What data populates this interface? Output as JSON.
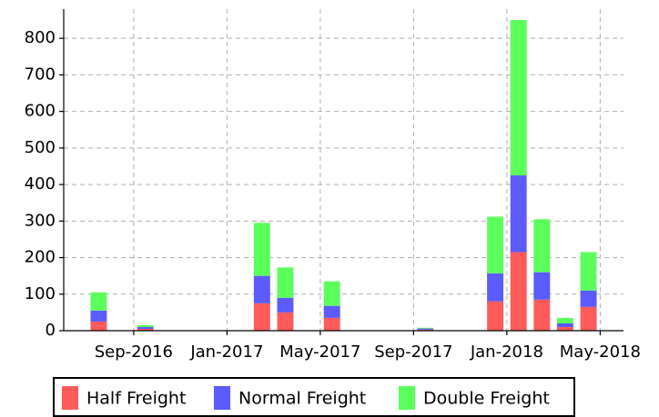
{
  "chart_data": {
    "type": "stacked_bar",
    "x": [
      "2016-07",
      "2016-09",
      "2017-02",
      "2017-03",
      "2017-05",
      "2017-09",
      "2017-12",
      "2018-01",
      "2018-02",
      "2018-03",
      "2018-04"
    ],
    "series": [
      {
        "name": "Half Freight",
        "color": "#ff5b5b",
        "values": [
          25,
          5,
          75,
          50,
          35,
          3,
          80,
          215,
          85,
          10,
          65
        ]
      },
      {
        "name": "Normal Freight",
        "color": "#5b5bff",
        "values": [
          30,
          5,
          75,
          40,
          33,
          3,
          77,
          210,
          75,
          10,
          45
        ]
      },
      {
        "name": "Double Freight",
        "color": "#5bff5b",
        "values": [
          50,
          5,
          145,
          83,
          67,
          2,
          155,
          425,
          145,
          15,
          105
        ]
      }
    ],
    "xlim": [
      "2016-06",
      "2018-06"
    ],
    "xticks": [
      {
        "value": "2016-09",
        "label": "Sep-2016"
      },
      {
        "value": "2017-01",
        "label": "Jan-2017"
      },
      {
        "value": "2017-05",
        "label": "May-2017"
      },
      {
        "value": "2017-09",
        "label": "Sep-2017"
      },
      {
        "value": "2018-01",
        "label": "Jan-2018"
      },
      {
        "value": "2018-05",
        "label": "May-2018"
      }
    ],
    "ylim": [
      0,
      880
    ],
    "yticks": [
      0,
      100,
      200,
      300,
      400,
      500,
      600,
      700,
      800
    ],
    "grid": true,
    "legend": "bottom"
  }
}
